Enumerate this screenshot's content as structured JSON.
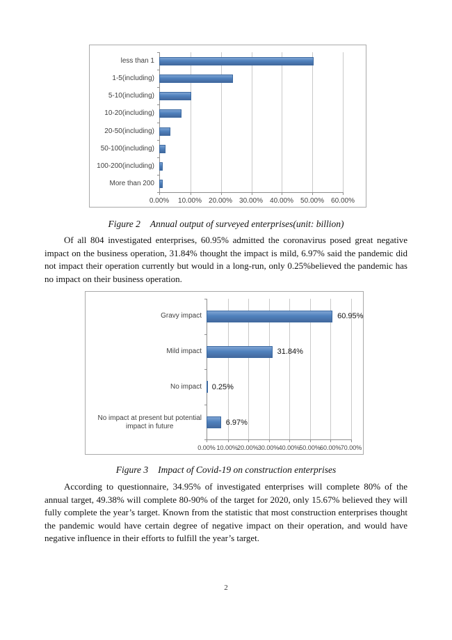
{
  "page_number": "2",
  "figure2": {
    "caption_label": "Figure 2",
    "caption_title": "Annual output of surveyed enterprises(unit: billion)"
  },
  "figure3": {
    "caption_label": "Figure 3",
    "caption_title": "Impact of Covid-19 on construction enterprises"
  },
  "paragraphs": [
    "Of all 804 investigated enterprises, 60.95% admitted the coronavirus posed great negative impact on the business operation, 31.84% thought the impact is mild, 6.97% said the pandemic did not impact their operation currently but would in a long-run, only 0.25%believed the pandemic has no impact on their business operation.",
    "According to questionnaire, 34.95% of investigated enterprises will complete 80% of the annual target, 49.38% will complete 80-90% of the target for 2020, only 15.67% believed they will fully complete the year’s target. Known from the statistic that most construction enterprises thought the pandemic would have certain degree of negative impact on their operation, and would have negative influence in their efforts to fulfill the year’s target."
  ],
  "chart_data": [
    {
      "type": "bar",
      "orientation": "horizontal",
      "title": "Annual output of surveyed enterprises (unit: billion)",
      "categories": [
        "less than 1",
        "1-5(including)",
        "5-10(including)",
        "10-20(including)",
        "20-50(including)",
        "50-100(including)",
        "100-200(including)",
        "More than 200"
      ],
      "values": [
        50.5,
        24.0,
        10.5,
        7.2,
        3.7,
        2.0,
        1.1,
        1.1
      ],
      "xlabel": "",
      "ylabel": "",
      "xlim": [
        0,
        60
      ],
      "tick_values": [
        0,
        10,
        20,
        30,
        40,
        50,
        60
      ],
      "tick_labels": [
        "0.00%",
        "10.00%",
        "20.00%",
        "30.00%",
        "40.00%",
        "50.00%",
        "60.00%"
      ],
      "grid": true,
      "legend": false,
      "bar_color": "#4f81bd",
      "gridline_color": "#c9c9c9",
      "axis_color": "#8e8e8e"
    },
    {
      "type": "bar",
      "orientation": "horizontal",
      "title": "Impact of Covid-19 on construction enterprises",
      "categories": [
        "Gravy impact",
        "Mild impact",
        "No impact",
        [
          "No impact at present but potential",
          "impact in future"
        ]
      ],
      "values": [
        60.95,
        31.84,
        0.25,
        6.97
      ],
      "data_labels": [
        "60.95%",
        "31.84%",
        "0.25%",
        "6.97%"
      ],
      "xlabel": "",
      "ylabel": "",
      "xlim": [
        0,
        70
      ],
      "tick_values": [
        0,
        10,
        20,
        30,
        40,
        50,
        60,
        70
      ],
      "tick_labels": [
        "0.00%",
        "10.00%",
        "20.00%",
        "30.00%",
        "40.00%",
        "50.00%",
        "60.00%",
        "70.00%"
      ],
      "grid": true,
      "legend": false,
      "bar_color": "#4f81bd",
      "gridline_color": "#c9c9c9",
      "axis_color": "#8e8e8e"
    }
  ]
}
